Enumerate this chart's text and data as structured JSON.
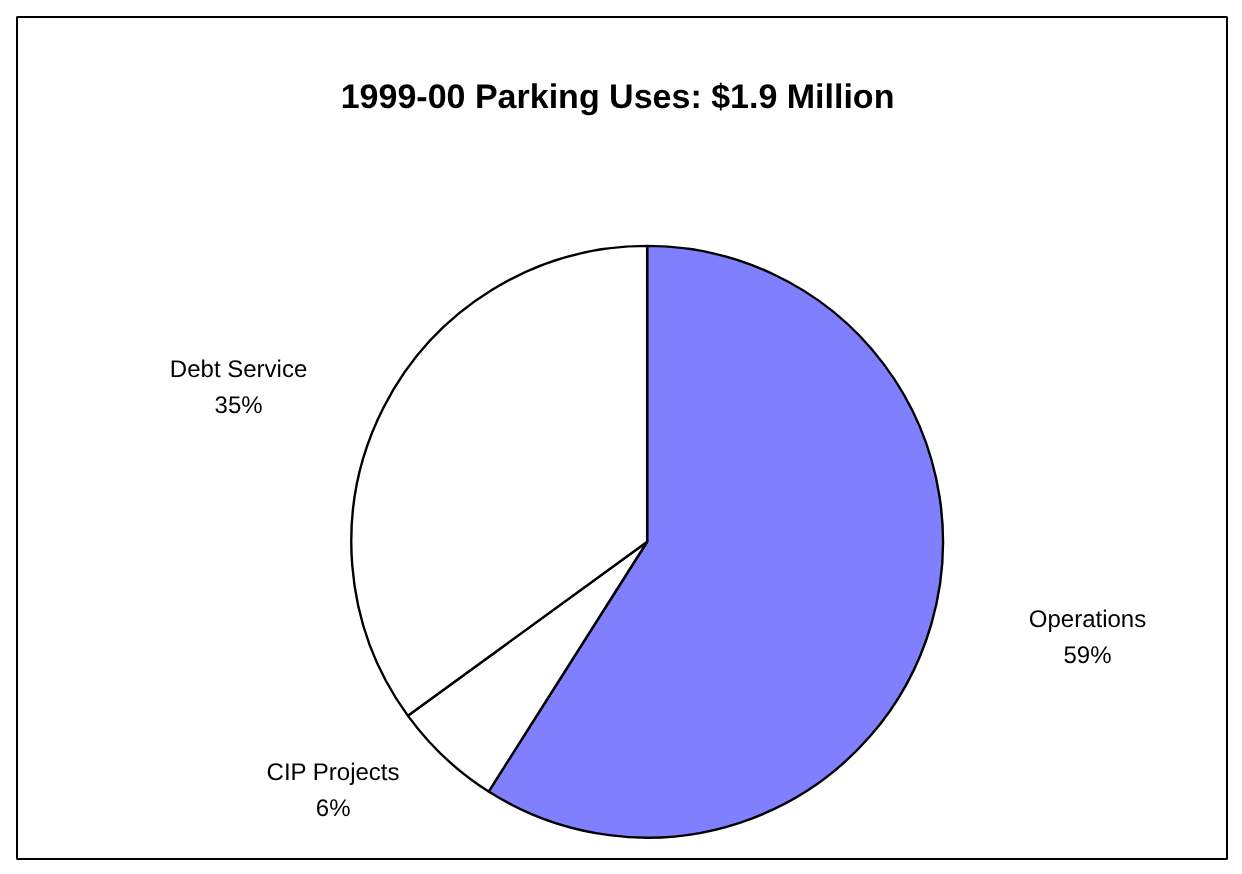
{
  "chart_data": {
    "type": "pie",
    "title": "1999-00 Parking Uses: $1.9 Million",
    "categories": [
      "Operations",
      "CIP Projects",
      "Debt Service"
    ],
    "values": [
      59,
      6,
      35
    ],
    "value_labels": [
      "59%",
      "6%",
      "35%"
    ],
    "colors": [
      "#8080ff",
      "#ffffff",
      "#ffffff"
    ]
  }
}
